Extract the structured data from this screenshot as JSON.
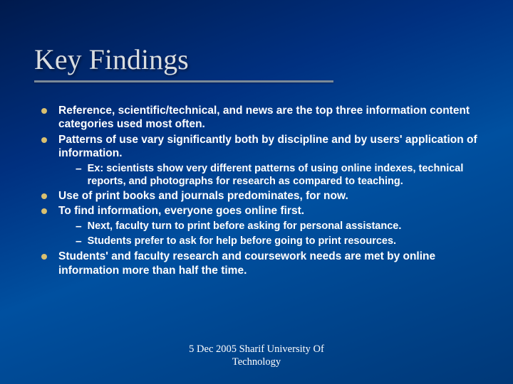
{
  "title": "Key Findings",
  "title_color": "#d9dde0",
  "title_fontsize": 40,
  "underline_color": "#7a8a99",
  "underline_width": 420,
  "background_gradient": [
    "#001a4d",
    "#003080",
    "#0050a0",
    "#003878"
  ],
  "bullet_dot_color": "#d9c070",
  "body_font": "Arial",
  "body_fontsize": 15.5,
  "body_weight": "bold",
  "sub_fontsize": 14.5,
  "items": [
    {
      "text": "Reference, scientific/technical, and news are the top three information content categories used most often.",
      "subs": []
    },
    {
      "text": "Patterns of use vary significantly both by discipline and by users' application of information.",
      "subs": [
        "Ex: scientists show very different patterns of using online indexes, technical reports, and photographs for research as compared to teaching."
      ]
    },
    {
      "text": "Use of print books and journals predominates, for now.",
      "subs": []
    },
    {
      "text": "To find information, everyone goes online first.",
      "subs": [
        "Next, faculty turn to print before asking for personal assistance.",
        "Students prefer to ask for help before going to print resources."
      ]
    },
    {
      "text": "Students' and faculty research and coursework needs are met by online information more than half the time.",
      "subs": []
    }
  ],
  "footer_line1": "5 Dec 2005 Sharif University Of",
  "footer_line2": "Technology",
  "footer_fontsize": 14.5
}
